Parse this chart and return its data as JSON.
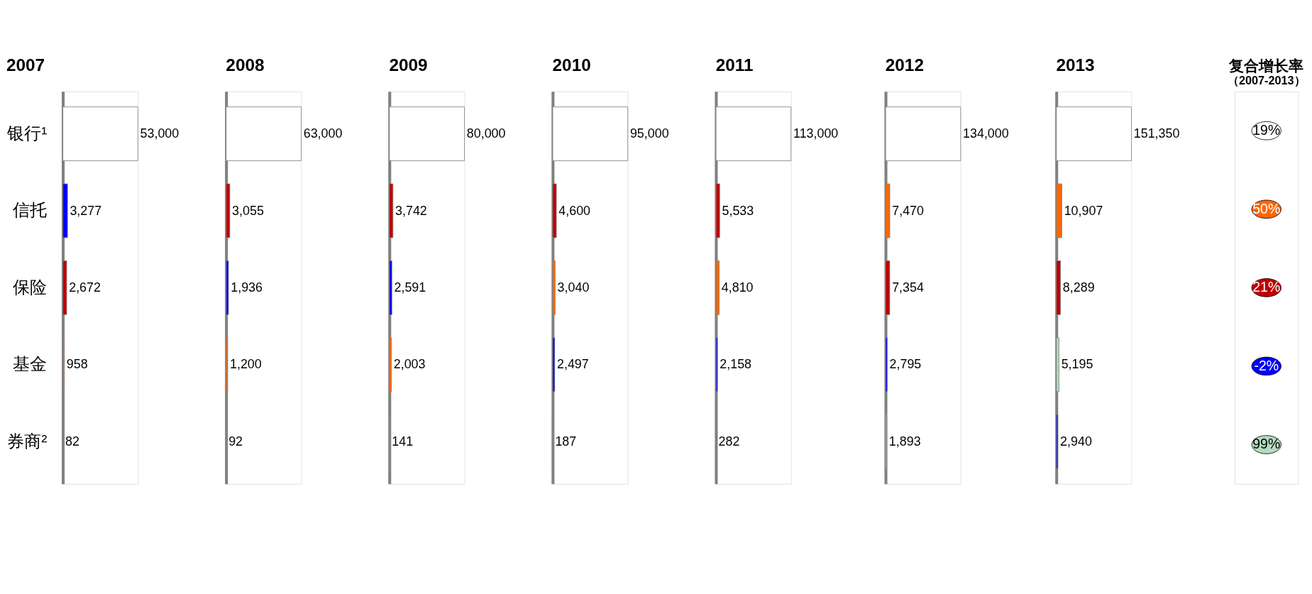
{
  "chart_data": [
    {
      "type": "bar",
      "orientation": "horizontal",
      "title": "2007",
      "categories": [
        "银行¹",
        "信托",
        "保险",
        "基金",
        "券商²"
      ],
      "values": [
        53000,
        3277,
        2672,
        958,
        82
      ],
      "colors": [
        "#ffffff",
        "#0000ff",
        "#c00000",
        "#ff6600",
        "#b3dbbf"
      ],
      "value_labels": [
        "53,000",
        "3,277",
        "2,672",
        "958",
        "82"
      ]
    },
    {
      "type": "bar",
      "orientation": "horizontal",
      "title": "2008",
      "values": [
        63000,
        3055,
        1936,
        1200,
        92
      ],
      "colors": [
        "#ffffff",
        "#c00000",
        "#0000ff",
        "#ff6600",
        "#b3dbbf"
      ],
      "value_labels": [
        "63,000",
        "3,055",
        "1,936",
        "1,200",
        "92"
      ],
      "tick_labels": false
    },
    {
      "type": "bar",
      "orientation": "horizontal",
      "title": "2009",
      "values": [
        80000,
        3742,
        2591,
        2003,
        141
      ],
      "colors": [
        "#ffffff",
        "#c00000",
        "#0000ff",
        "#ff6600",
        "#b3dbbf"
      ],
      "value_labels": [
        "80,000",
        "3,742",
        "2,591",
        "2,003",
        "141"
      ],
      "tick_labels": false
    },
    {
      "type": "bar",
      "orientation": "horizontal",
      "title": "2010",
      "values": [
        95000,
        4600,
        3040,
        2497,
        187
      ],
      "colors": [
        "#ffffff",
        "#c00000",
        "#ff6600",
        "#0000ff",
        "#b3dbbf"
      ],
      "value_labels": [
        "95,000",
        "4,600",
        "3,040",
        "2,497",
        "187"
      ],
      "tick_labels": false
    },
    {
      "type": "bar",
      "orientation": "horizontal",
      "title": "2011",
      "values": [
        113000,
        5533,
        4810,
        2158,
        282
      ],
      "colors": [
        "#ffffff",
        "#c00000",
        "#ff6600",
        "#0000ff",
        "#b3dbbf"
      ],
      "value_labels": [
        "113,000",
        "5,533",
        "4,810",
        "2,158",
        "282"
      ],
      "tick_labels": false
    },
    {
      "type": "bar",
      "orientation": "horizontal",
      "title": "2012",
      "values": [
        134000,
        7470,
        7354,
        2795,
        1893
      ],
      "colors": [
        "#ffffff",
        "#ff6600",
        "#c00000",
        "#0000ff",
        "#b3dbbf"
      ],
      "value_labels": [
        "134,000",
        "7,470",
        "7,354",
        "2,795",
        "1,893"
      ],
      "tick_labels": false
    },
    {
      "type": "bar",
      "orientation": "horizontal",
      "title": "2013",
      "values": [
        151350,
        10907,
        8289,
        5195,
        2940
      ],
      "colors": [
        "#ffffff",
        "#ff6600",
        "#c00000",
        "#b3dbbf",
        "#0000ff"
      ],
      "value_labels": [
        "151,350",
        "10,907",
        "8,289",
        "5,195",
        "2,940"
      ],
      "tick_labels": false
    },
    {
      "type": "other",
      "title": "复合增长率",
      "subtitle": "（2007-2013）",
      "values": [
        19,
        50,
        21,
        -2,
        99
      ],
      "value_labels": [
        "19%",
        "50%",
        "21%",
        "-2%",
        "99%"
      ],
      "colors": [
        "#ffffff",
        "#ff6600",
        "#c00000",
        "#0000ff",
        "#b3dbbf"
      ]
    }
  ]
}
